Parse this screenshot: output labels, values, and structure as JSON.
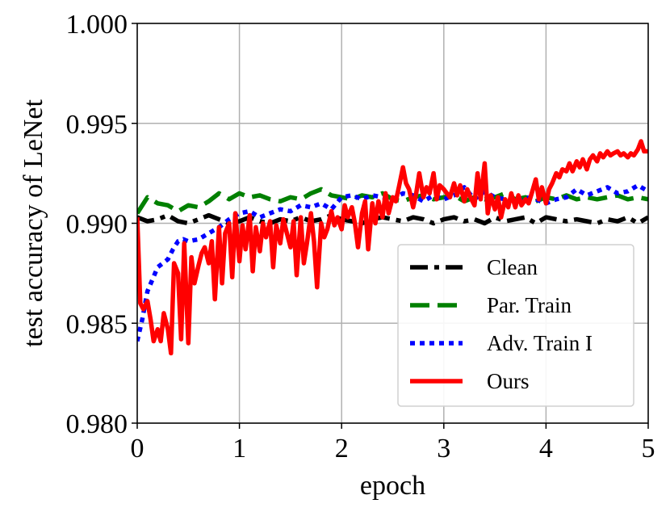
{
  "chart_data": {
    "type": "line",
    "xlabel": "epoch",
    "ylabel": "test accuracy of  LeNet",
    "xlim": [
      0,
      5
    ],
    "ylim": [
      0.98,
      1.0
    ],
    "xticks": [
      "0",
      "1",
      "2",
      "3",
      "4",
      "5"
    ],
    "yticks": [
      "0.980",
      "0.985",
      "0.990",
      "0.995",
      "1.000"
    ],
    "grid": true,
    "legend_position": "lower-right",
    "series": [
      {
        "name": "Clean",
        "color": "#000000",
        "style": "dashdot",
        "x": [
          0.0,
          0.1,
          0.2,
          0.3,
          0.4,
          0.5,
          0.6,
          0.7,
          0.8,
          0.9,
          1.0,
          1.1,
          1.2,
          1.3,
          1.4,
          1.5,
          1.6,
          1.7,
          1.8,
          1.9,
          2.0,
          2.1,
          2.2,
          2.3,
          2.4,
          2.5,
          2.6,
          2.7,
          2.8,
          2.9,
          3.0,
          3.1,
          3.2,
          3.3,
          3.4,
          3.5,
          3.6,
          3.7,
          3.8,
          3.9,
          4.0,
          4.1,
          4.2,
          4.3,
          4.4,
          4.5,
          4.6,
          4.7,
          4.8,
          4.9,
          5.0
        ],
        "y": [
          0.9903,
          0.9901,
          0.9902,
          0.9904,
          0.9901,
          0.99,
          0.9902,
          0.9904,
          0.9902,
          0.99,
          0.9901,
          0.9903,
          0.9901,
          0.99,
          0.9902,
          0.9901,
          0.9903,
          0.9901,
          0.9902,
          0.9904,
          0.9902,
          0.9901,
          0.99,
          0.9902,
          0.9903,
          0.9902,
          0.9901,
          0.9903,
          0.9902,
          0.99,
          0.9902,
          0.9903,
          0.9901,
          0.9902,
          0.99,
          0.9903,
          0.9901,
          0.9902,
          0.9903,
          0.99,
          0.9903,
          0.9902,
          0.9901,
          0.9902,
          0.9901,
          0.99,
          0.9902,
          0.9901,
          0.9903,
          0.99,
          0.9903
        ]
      },
      {
        "name": "Par. Train",
        "color": "#008000",
        "style": "dashed",
        "x": [
          0.0,
          0.1,
          0.2,
          0.3,
          0.4,
          0.5,
          0.6,
          0.7,
          0.8,
          0.9,
          1.0,
          1.1,
          1.2,
          1.3,
          1.4,
          1.5,
          1.6,
          1.7,
          1.8,
          1.9,
          2.0,
          2.1,
          2.2,
          2.3,
          2.4,
          2.5,
          2.6,
          2.7,
          2.8,
          2.9,
          3.0,
          3.1,
          3.2,
          3.3,
          3.4,
          3.5,
          3.6,
          3.7,
          3.8,
          3.9,
          4.0,
          4.1,
          4.2,
          4.3,
          4.4,
          4.5,
          4.6,
          4.7,
          4.8,
          4.9,
          5.0
        ],
        "y": [
          0.9905,
          0.9913,
          0.991,
          0.9909,
          0.9906,
          0.9909,
          0.9908,
          0.9911,
          0.9915,
          0.9912,
          0.9915,
          0.9913,
          0.9914,
          0.9912,
          0.9911,
          0.9913,
          0.9912,
          0.9915,
          0.9917,
          0.9914,
          0.9913,
          0.9912,
          0.9914,
          0.9913,
          0.9915,
          0.9912,
          0.9911,
          0.9913,
          0.9914,
          0.9912,
          0.9913,
          0.9914,
          0.9911,
          0.9913,
          0.9912,
          0.9913,
          0.9915,
          0.9912,
          0.9913,
          0.9911,
          0.9913,
          0.9912,
          0.9914,
          0.9912,
          0.9913,
          0.9912,
          0.9913,
          0.9914,
          0.9912,
          0.9913,
          0.9912
        ]
      },
      {
        "name": "Adv. Train I",
        "color": "#0000ff",
        "style": "dotted",
        "x": [
          0.0,
          0.05,
          0.1,
          0.15,
          0.2,
          0.25,
          0.3,
          0.35,
          0.4,
          0.45,
          0.5,
          0.6,
          0.7,
          0.8,
          0.9,
          1.0,
          1.1,
          1.2,
          1.3,
          1.4,
          1.5,
          1.6,
          1.7,
          1.8,
          1.9,
          2.0,
          2.1,
          2.2,
          2.3,
          2.4,
          2.5,
          2.6,
          2.7,
          2.8,
          2.9,
          3.0,
          3.1,
          3.2,
          3.3,
          3.4,
          3.5,
          3.6,
          3.7,
          3.8,
          3.9,
          4.0,
          4.1,
          4.2,
          4.3,
          4.4,
          4.5,
          4.6,
          4.7,
          4.8,
          4.9,
          5.0
        ],
        "y": [
          0.9841,
          0.9852,
          0.9866,
          0.9872,
          0.9878,
          0.988,
          0.9882,
          0.9887,
          0.9891,
          0.9892,
          0.9891,
          0.9892,
          0.9895,
          0.9898,
          0.9902,
          0.9905,
          0.9906,
          0.9903,
          0.9905,
          0.9907,
          0.9906,
          0.9909,
          0.9908,
          0.991,
          0.9907,
          0.9913,
          0.9914,
          0.9912,
          0.9914,
          0.9913,
          0.9912,
          0.9915,
          0.9914,
          0.9911,
          0.9914,
          0.9912,
          0.9914,
          0.9918,
          0.9912,
          0.9916,
          0.9913,
          0.9912,
          0.9911,
          0.9913,
          0.9912,
          0.991,
          0.9912,
          0.9913,
          0.9917,
          0.9914,
          0.9916,
          0.9918,
          0.9915,
          0.9916,
          0.9919,
          0.9916
        ]
      },
      {
        "name": "Ours",
        "color": "#ff0000",
        "style": "solid",
        "x": [
          0.0,
          0.03,
          0.06,
          0.1,
          0.13,
          0.16,
          0.2,
          0.23,
          0.26,
          0.3,
          0.33,
          0.36,
          0.4,
          0.43,
          0.46,
          0.5,
          0.53,
          0.56,
          0.6,
          0.63,
          0.66,
          0.7,
          0.73,
          0.76,
          0.8,
          0.83,
          0.86,
          0.9,
          0.93,
          0.96,
          1.0,
          1.03,
          1.06,
          1.1,
          1.13,
          1.16,
          1.2,
          1.23,
          1.26,
          1.3,
          1.33,
          1.36,
          1.4,
          1.43,
          1.46,
          1.5,
          1.53,
          1.56,
          1.6,
          1.63,
          1.66,
          1.7,
          1.73,
          1.76,
          1.8,
          1.83,
          1.86,
          1.9,
          1.93,
          1.96,
          2.0,
          2.03,
          2.06,
          2.1,
          2.13,
          2.16,
          2.2,
          2.23,
          2.26,
          2.3,
          2.33,
          2.36,
          2.4,
          2.43,
          2.46,
          2.5,
          2.53,
          2.56,
          2.6,
          2.63,
          2.66,
          2.7,
          2.73,
          2.76,
          2.8,
          2.83,
          2.86,
          2.9,
          2.93,
          2.96,
          3.0,
          3.03,
          3.06,
          3.1,
          3.13,
          3.16,
          3.2,
          3.23,
          3.26,
          3.3,
          3.33,
          3.36,
          3.4,
          3.43,
          3.46,
          3.5,
          3.53,
          3.56,
          3.6,
          3.63,
          3.66,
          3.7,
          3.73,
          3.76,
          3.8,
          3.83,
          3.86,
          3.9,
          3.93,
          3.96,
          4.0,
          4.03,
          4.06,
          4.1,
          4.13,
          4.16,
          4.2,
          4.23,
          4.26,
          4.3,
          4.33,
          4.36,
          4.4,
          4.43,
          4.46,
          4.5,
          4.53,
          4.56,
          4.6,
          4.63,
          4.66,
          4.7,
          4.73,
          4.76,
          4.8,
          4.83,
          4.86,
          4.9,
          4.93,
          4.96,
          5.0
        ],
        "y": [
          0.9903,
          0.986,
          0.9857,
          0.9861,
          0.9852,
          0.9841,
          0.9847,
          0.9841,
          0.9855,
          0.9847,
          0.9835,
          0.988,
          0.9875,
          0.9842,
          0.989,
          0.984,
          0.9883,
          0.987,
          0.9879,
          0.9885,
          0.9888,
          0.988,
          0.9891,
          0.9862,
          0.9898,
          0.987,
          0.9895,
          0.99,
          0.9873,
          0.9905,
          0.9881,
          0.9899,
          0.9887,
          0.9904,
          0.9876,
          0.9898,
          0.9886,
          0.99,
          0.9893,
          0.9901,
          0.9878,
          0.9899,
          0.989,
          0.9902,
          0.9896,
          0.9888,
          0.9901,
          0.9874,
          0.9903,
          0.988,
          0.989,
          0.9905,
          0.9891,
          0.9868,
          0.99,
          0.9893,
          0.9897,
          0.9906,
          0.9899,
          0.9903,
          0.9897,
          0.9909,
          0.9903,
          0.9908,
          0.99,
          0.9888,
          0.9905,
          0.9911,
          0.9887,
          0.991,
          0.99,
          0.9911,
          0.9903,
          0.9915,
          0.9905,
          0.9913,
          0.9911,
          0.9918,
          0.9928,
          0.992,
          0.9917,
          0.9908,
          0.9915,
          0.9925,
          0.9913,
          0.9918,
          0.9915,
          0.9925,
          0.9912,
          0.9919,
          0.9917,
          0.9915,
          0.9913,
          0.992,
          0.9914,
          0.9919,
          0.9911,
          0.9917,
          0.9913,
          0.9909,
          0.9925,
          0.9912,
          0.993,
          0.9905,
          0.9914,
          0.9907,
          0.9913,
          0.9903,
          0.9912,
          0.9908,
          0.9915,
          0.9908,
          0.9914,
          0.9909,
          0.9912,
          0.991,
          0.9915,
          0.9922,
          0.9912,
          0.9918,
          0.991,
          0.9917,
          0.992,
          0.9925,
          0.9923,
          0.9927,
          0.9926,
          0.993,
          0.9926,
          0.9931,
          0.9928,
          0.9932,
          0.9927,
          0.9932,
          0.9934,
          0.9931,
          0.9935,
          0.9933,
          0.9936,
          0.9934,
          0.9935,
          0.9936,
          0.9934,
          0.9935,
          0.9933,
          0.9935,
          0.9934,
          0.9937,
          0.9941,
          0.9936,
          0.9936
        ]
      }
    ]
  }
}
